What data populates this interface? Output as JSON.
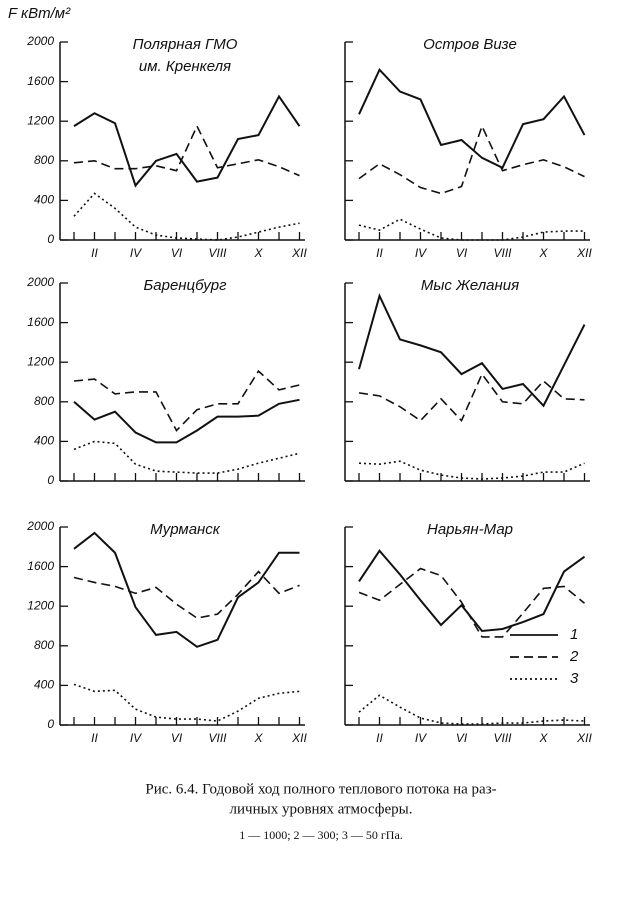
{
  "ylabel": "F кВт/м²",
  "chart_data": [
    {
      "type": "line",
      "title": [
        "Полярная ГМО",
        "им. Кренкеля"
      ],
      "categories": [
        null,
        "II",
        null,
        "IV",
        null,
        "VI",
        null,
        "VIII",
        null,
        "X",
        null,
        "XII"
      ],
      "ylim": [
        0,
        2000
      ],
      "yticks": [
        0,
        400,
        800,
        1200,
        1600,
        2000
      ],
      "ytick_labels": true,
      "series": [
        {
          "dash": "solid",
          "color": "#111",
          "values": [
            1150,
            1280,
            1180,
            550,
            800,
            870,
            590,
            630,
            1020,
            1060,
            1450,
            1150
          ]
        },
        {
          "dash": "dashed",
          "color": "#111",
          "values": [
            780,
            800,
            720,
            720,
            750,
            700,
            1150,
            730,
            770,
            810,
            740,
            650
          ]
        },
        {
          "dash": "dotted",
          "color": "#111",
          "values": [
            240,
            470,
            320,
            130,
            50,
            20,
            10,
            0,
            30,
            80,
            130,
            170
          ]
        }
      ]
    },
    {
      "type": "line",
      "title": [
        "Остров Визе"
      ],
      "categories": [
        null,
        "II",
        null,
        "IV",
        null,
        "VI",
        null,
        "VIII",
        null,
        "X",
        null,
        "XII"
      ],
      "ylim": [
        0,
        2000
      ],
      "yticks": [
        0,
        400,
        800,
        1200,
        1600,
        2000
      ],
      "ytick_labels": false,
      "series": [
        {
          "dash": "solid",
          "color": "#111",
          "values": [
            1270,
            1720,
            1500,
            1420,
            960,
            1010,
            830,
            730,
            1170,
            1220,
            1450,
            1060
          ]
        },
        {
          "dash": "dashed",
          "color": "#111",
          "values": [
            620,
            770,
            660,
            530,
            470,
            540,
            1150,
            700,
            760,
            810,
            740,
            640
          ]
        },
        {
          "dash": "dotted",
          "color": "#111",
          "values": [
            150,
            100,
            210,
            110,
            20,
            0,
            0,
            0,
            30,
            80,
            90,
            90
          ]
        }
      ]
    },
    {
      "type": "line",
      "title": [
        "Баренцбург"
      ],
      "categories": [
        null,
        null,
        null,
        null,
        null,
        null,
        null,
        null,
        null,
        null,
        null,
        null
      ],
      "ylim": [
        0,
        2000
      ],
      "yticks": [
        0,
        400,
        800,
        1200,
        1600,
        2000
      ],
      "ytick_labels": true,
      "series": [
        {
          "dash": "solid",
          "color": "#111",
          "values": [
            800,
            620,
            700,
            490,
            390,
            390,
            510,
            650,
            650,
            660,
            780,
            820
          ]
        },
        {
          "dash": "dashed",
          "color": "#111",
          "values": [
            1010,
            1030,
            880,
            900,
            900,
            510,
            720,
            780,
            780,
            1110,
            920,
            970
          ]
        },
        {
          "dash": "dotted",
          "color": "#111",
          "values": [
            320,
            400,
            380,
            170,
            100,
            90,
            80,
            80,
            120,
            180,
            230,
            280
          ]
        }
      ]
    },
    {
      "type": "line",
      "title": [
        "Мыс Желания"
      ],
      "categories": [
        null,
        null,
        null,
        null,
        null,
        null,
        null,
        null,
        null,
        null,
        null,
        null
      ],
      "ylim": [
        0,
        2000
      ],
      "yticks": [
        0,
        400,
        800,
        1200,
        1600,
        2000
      ],
      "ytick_labels": false,
      "series": [
        {
          "dash": "solid",
          "color": "#111",
          "values": [
            1130,
            1870,
            1430,
            1370,
            1300,
            1080,
            1190,
            930,
            980,
            760,
            1170,
            1580
          ]
        },
        {
          "dash": "dashed",
          "color": "#111",
          "values": [
            890,
            860,
            750,
            610,
            830,
            610,
            1080,
            800,
            780,
            1010,
            830,
            820
          ]
        },
        {
          "dash": "dotted",
          "color": "#111",
          "values": [
            180,
            170,
            200,
            110,
            60,
            30,
            20,
            30,
            50,
            90,
            90,
            180
          ]
        }
      ]
    },
    {
      "type": "line",
      "title": [
        "Мурманск"
      ],
      "categories": [
        null,
        "II",
        null,
        "IV",
        null,
        "VI",
        null,
        "VIII",
        null,
        "X",
        null,
        "XII"
      ],
      "ylim": [
        0,
        2000
      ],
      "yticks": [
        0,
        400,
        800,
        1200,
        1600,
        2000
      ],
      "ytick_labels": true,
      "series": [
        {
          "dash": "solid",
          "color": "#111",
          "values": [
            1780,
            1940,
            1740,
            1190,
            910,
            940,
            790,
            860,
            1290,
            1440,
            1740,
            1740
          ]
        },
        {
          "dash": "dashed",
          "color": "#111",
          "values": [
            1490,
            1440,
            1400,
            1330,
            1390,
            1220,
            1080,
            1120,
            1320,
            1550,
            1330,
            1410
          ]
        },
        {
          "dash": "dotted",
          "color": "#111",
          "values": [
            410,
            340,
            350,
            160,
            80,
            60,
            60,
            40,
            140,
            270,
            320,
            340
          ]
        }
      ]
    },
    {
      "type": "line",
      "title": [
        "Нарьян-Мар"
      ],
      "legend": "right",
      "categories": [
        null,
        "II",
        null,
        "IV",
        null,
        "VI",
        null,
        "VIII",
        null,
        "X",
        null,
        "XII"
      ],
      "ylim": [
        0,
        2000
      ],
      "yticks": [
        0,
        400,
        800,
        1200,
        1600,
        2000
      ],
      "ytick_labels": false,
      "series": [
        {
          "name": "1",
          "dash": "solid",
          "color": "#111",
          "values": [
            1450,
            1760,
            1520,
            1260,
            1010,
            1210,
            950,
            970,
            1040,
            1120,
            1550,
            1700
          ]
        },
        {
          "name": "2",
          "dash": "dashed",
          "color": "#111",
          "values": [
            1340,
            1260,
            1420,
            1580,
            1510,
            1240,
            890,
            890,
            1130,
            1380,
            1400,
            1230
          ]
        },
        {
          "name": "3",
          "dash": "dotted",
          "color": "#111",
          "values": [
            130,
            300,
            180,
            70,
            20,
            10,
            10,
            20,
            20,
            40,
            50,
            40
          ]
        }
      ]
    }
  ],
  "caption": {
    "lines": [
      "Рис. 6.4. Годовой ход полного теплового потока на раз-",
      "личных уровнях атмосферы."
    ],
    "legend_note": "1 — 1000;  2 — 300;  3 — 50  гПа."
  }
}
